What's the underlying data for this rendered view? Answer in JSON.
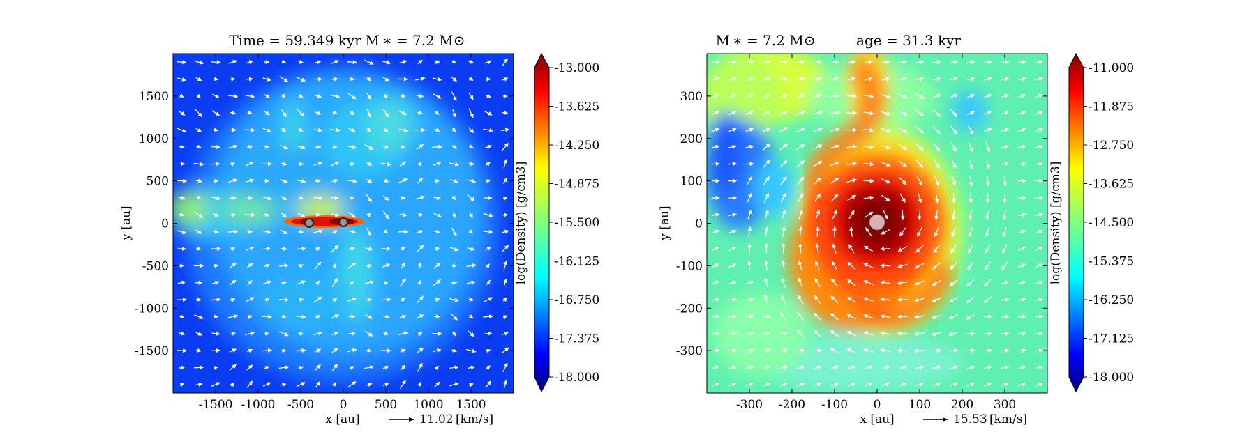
{
  "chart_data": [
    {
      "type": "heatmap",
      "title_left": "Time = 59.349 kyr",
      "title_right": "M ∗ = 7.2 M⊙",
      "xlabel": "x [au]",
      "ylabel": "y [au]",
      "xlim": [
        -2000,
        2000
      ],
      "ylim": [
        -2000,
        2000
      ],
      "xticks": [
        -1500,
        -1000,
        -500,
        0,
        500,
        1000,
        1500
      ],
      "yticks": [
        -1500,
        -1000,
        -500,
        0,
        500,
        1000,
        1500
      ],
      "colorbar": {
        "label": "log(Density) [g/cm3]",
        "min": -18.0,
        "max": -13.0,
        "ticks": [
          "-13.000",
          "-13.625",
          "-14.250",
          "-14.875",
          "-15.500",
          "-16.125",
          "-16.750",
          "-17.375",
          "-18.000"
        ]
      },
      "velocity_key": {
        "value": "11.02",
        "unit": "[km/s]"
      },
      "sinks": [
        {
          "x": -400,
          "y": 0
        },
        {
          "x": 0,
          "y": 0
        }
      ]
    },
    {
      "type": "heatmap",
      "title_left": "M ∗ = 7.2 M⊙",
      "title_right": "age = 31.3 kyr",
      "xlabel": "x [au]",
      "ylabel": "y [au]",
      "xlim": [
        -400,
        400
      ],
      "ylim": [
        -400,
        400
      ],
      "xticks": [
        -300,
        -200,
        -100,
        0,
        100,
        200,
        300
      ],
      "yticks": [
        -300,
        -200,
        -100,
        0,
        100,
        200,
        300
      ],
      "colorbar": {
        "label": "log(Density) [g/cm3]",
        "min": -18.0,
        "max": -11.0,
        "ticks": [
          "-11.000",
          "-11.875",
          "-12.750",
          "-13.625",
          "-14.500",
          "-15.375",
          "-16.250",
          "-17.125",
          "-18.000"
        ]
      },
      "velocity_key": {
        "value": "15.53",
        "unit": "[km/s]"
      },
      "sinks": [
        {
          "x": 0,
          "y": 0
        }
      ]
    }
  ],
  "colors": {
    "jet": [
      "#00007f",
      "#0000ff",
      "#007fff",
      "#00ffff",
      "#7fff7f",
      "#ffff00",
      "#ff7f00",
      "#ff0000",
      "#7f0000"
    ],
    "arrow": "#ffffff",
    "sink_fill_left": "#9b9494",
    "sink_fill_right": "#d9b3b3"
  }
}
